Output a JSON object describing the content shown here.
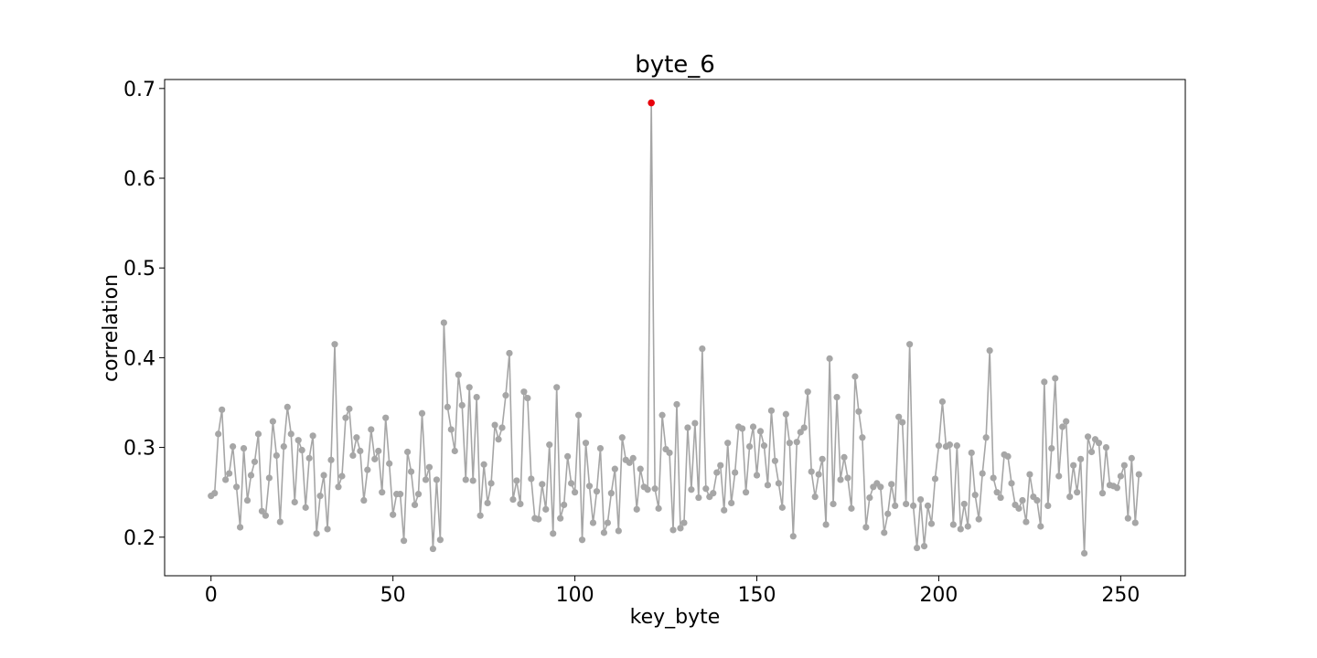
{
  "chart_data": {
    "type": "line",
    "title": "byte_6",
    "xlabel": "key_byte",
    "ylabel": "correlation",
    "xlim": [
      -12.75,
      267.75
    ],
    "ylim": [
      0.157,
      0.71
    ],
    "xticks": [
      0,
      50,
      100,
      150,
      200,
      250
    ],
    "yticks": [
      0.2,
      0.3,
      0.4,
      0.5,
      0.6,
      0.7
    ],
    "xtick_labels": [
      "0",
      "50",
      "100",
      "150",
      "200",
      "250"
    ],
    "ytick_labels": [
      "0.2",
      "0.3",
      "0.4",
      "0.5",
      "0.6",
      "0.7"
    ],
    "grid": false,
    "legend": "none",
    "line_color": "#a6a6a6",
    "highlight_color": "#e8000b",
    "highlight": {
      "x": 121,
      "y": 0.684
    },
    "series": [
      {
        "values": [
          0.246,
          0.249,
          0.315,
          0.342,
          0.264,
          0.271,
          0.301,
          0.256,
          0.211,
          0.299,
          0.241,
          0.269,
          0.284,
          0.315,
          0.229,
          0.224,
          0.266,
          0.329,
          0.291,
          0.217,
          0.301,
          0.345,
          0.315,
          0.239,
          0.308,
          0.297,
          0.233,
          0.288,
          0.313,
          0.204,
          0.246,
          0.269,
          0.209,
          0.286,
          0.415,
          0.256,
          0.268,
          0.333,
          0.343,
          0.291,
          0.311,
          0.296,
          0.241,
          0.275,
          0.32,
          0.287,
          0.296,
          0.25,
          0.333,
          0.282,
          0.225,
          0.248,
          0.248,
          0.196,
          0.295,
          0.273,
          0.236,
          0.248,
          0.338,
          0.264,
          0.278,
          0.187,
          0.264,
          0.197,
          0.439,
          0.345,
          0.32,
          0.296,
          0.381,
          0.347,
          0.264,
          0.367,
          0.263,
          0.356,
          0.224,
          0.281,
          0.238,
          0.26,
          0.325,
          0.309,
          0.322,
          0.358,
          0.405,
          0.242,
          0.263,
          0.237,
          0.362,
          0.355,
          0.265,
          0.221,
          0.22,
          0.259,
          0.231,
          0.303,
          0.204,
          0.367,
          0.221,
          0.236,
          0.29,
          0.26,
          0.25,
          0.336,
          0.197,
          0.305,
          0.257,
          0.216,
          0.251,
          0.299,
          0.205,
          0.216,
          0.249,
          0.276,
          0.207,
          0.311,
          0.286,
          0.283,
          0.288,
          0.231,
          0.276,
          0.256,
          0.253,
          0.684,
          0.254,
          0.232,
          0.336,
          0.298,
          0.294,
          0.208,
          0.348,
          0.21,
          0.216,
          0.322,
          0.253,
          0.327,
          0.244,
          0.41,
          0.254,
          0.245,
          0.249,
          0.272,
          0.28,
          0.23,
          0.305,
          0.238,
          0.272,
          0.323,
          0.321,
          0.25,
          0.301,
          0.323,
          0.269,
          0.318,
          0.302,
          0.258,
          0.341,
          0.285,
          0.26,
          0.233,
          0.337,
          0.305,
          0.201,
          0.306,
          0.317,
          0.322,
          0.362,
          0.273,
          0.245,
          0.27,
          0.287,
          0.214,
          0.399,
          0.237,
          0.356,
          0.264,
          0.289,
          0.266,
          0.232,
          0.379,
          0.34,
          0.311,
          0.211,
          0.244,
          0.256,
          0.26,
          0.256,
          0.205,
          0.226,
          0.259,
          0.235,
          0.334,
          0.328,
          0.237,
          0.415,
          0.235,
          0.188,
          0.242,
          0.19,
          0.235,
          0.215,
          0.265,
          0.302,
          0.351,
          0.301,
          0.303,
          0.214,
          0.302,
          0.209,
          0.237,
          0.212,
          0.294,
          0.247,
          0.22,
          0.271,
          0.311,
          0.408,
          0.266,
          0.25,
          0.244,
          0.292,
          0.29,
          0.26,
          0.236,
          0.232,
          0.241,
          0.217,
          0.27,
          0.245,
          0.241,
          0.212,
          0.373,
          0.235,
          0.299,
          0.377,
          0.268,
          0.323,
          0.329,
          0.245,
          0.28,
          0.25,
          0.287,
          0.182,
          0.312,
          0.295,
          0.309,
          0.305,
          0.249,
          0.3,
          0.258,
          0.257,
          0.255,
          0.268,
          0.28,
          0.221,
          0.288,
          0.216,
          0.27
        ]
      }
    ]
  }
}
